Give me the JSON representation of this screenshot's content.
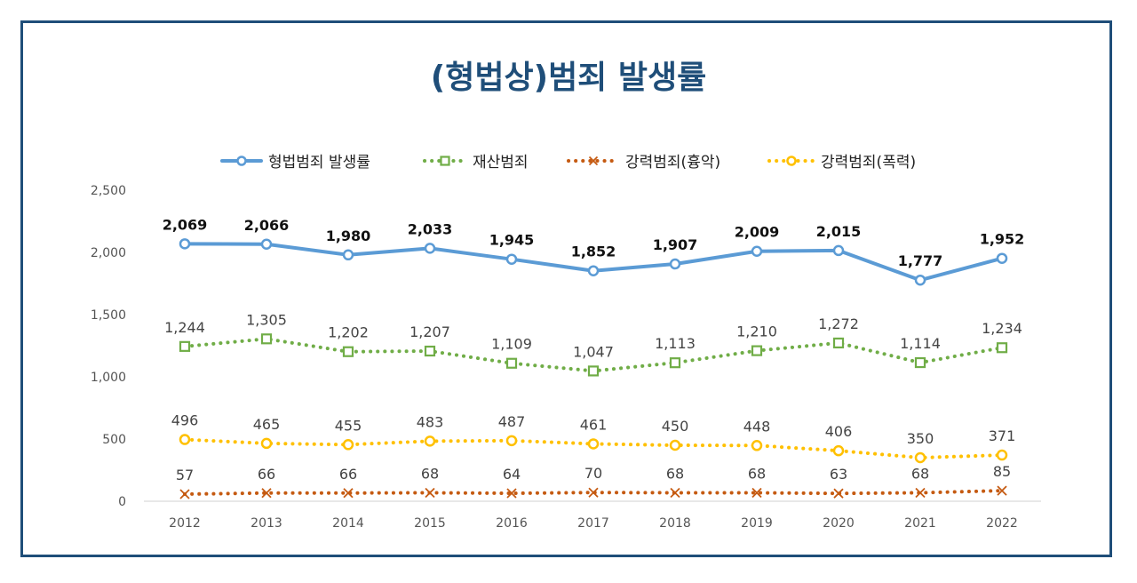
{
  "title": "(형법상)범죄 발생률",
  "chart_data": {
    "type": "line",
    "title": "(형법상)범죄 발생률",
    "xlabel": "",
    "ylabel": "",
    "categories": [
      "2012",
      "2013",
      "2014",
      "2015",
      "2016",
      "2017",
      "2018",
      "2019",
      "2020",
      "2021",
      "2022"
    ],
    "ylim": [
      0,
      2500
    ],
    "yticks": [
      0,
      500,
      1000,
      1500,
      2000,
      2500
    ],
    "ytick_labels": [
      "0",
      "500",
      "1,000",
      "1,500",
      "2,000",
      "2,500"
    ],
    "grid": false,
    "legend_position": "top",
    "series": [
      {
        "name": "형법범죄 발생률",
        "values": [
          2069,
          2066,
          1980,
          2033,
          1945,
          1852,
          1907,
          2009,
          2015,
          1777,
          1952
        ],
        "labels": [
          "2,069",
          "2,066",
          "1,980",
          "2,033",
          "1,945",
          "1,852",
          "1,907",
          "2,009",
          "2,015",
          "1,777",
          "1,952"
        ],
        "color": "#5b9bd5",
        "label_color": "#111111",
        "line_style": "solid",
        "marker": "circle"
      },
      {
        "name": "재산범죄",
        "values": [
          1244,
          1305,
          1202,
          1207,
          1109,
          1047,
          1113,
          1210,
          1272,
          1114,
          1234
        ],
        "labels": [
          "1,244",
          "1,305",
          "1,202",
          "1,207",
          "1,109",
          "1,047",
          "1,113",
          "1,210",
          "1,272",
          "1,114",
          "1,234"
        ],
        "color": "#70ad47",
        "label_color": "#444444",
        "line_style": "dotted",
        "marker": "square"
      },
      {
        "name": "강력범죄(흉악)",
        "values": [
          57,
          66,
          66,
          68,
          64,
          70,
          68,
          68,
          63,
          68,
          85
        ],
        "labels": [
          "57",
          "66",
          "66",
          "68",
          "64",
          "70",
          "68",
          "68",
          "63",
          "68",
          "85"
        ],
        "color": "#c55a11",
        "label_color": "#444444",
        "line_style": "dotted",
        "marker": "x"
      },
      {
        "name": "강력범죄(폭력)",
        "values": [
          496,
          465,
          455,
          483,
          487,
          461,
          450,
          448,
          406,
          350,
          371
        ],
        "labels": [
          "496",
          "465",
          "455",
          "483",
          "487",
          "461",
          "450",
          "448",
          "406",
          "350",
          "371"
        ],
        "color": "#ffc000",
        "label_color": "#444444",
        "line_style": "dotted",
        "marker": "circle"
      }
    ]
  }
}
